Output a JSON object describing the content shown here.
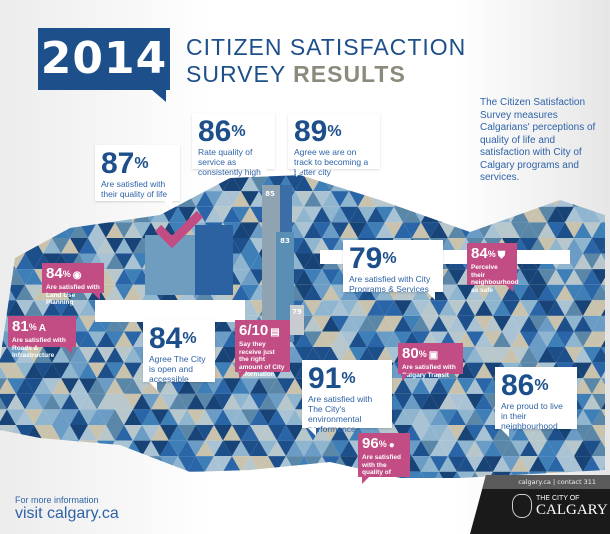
{
  "header": {
    "year": "2014",
    "title_line1": "CITIZEN SATISFACTION",
    "title_line2_a": "SURVEY",
    "title_line2_b": "RESULTS"
  },
  "description": "The Citizen Satisfaction Survey measures Calgarians' perceptions of quality of life and satisfaction with City of Calgary programs and services.",
  "stats": {
    "quality_of_life": {
      "value": "87",
      "unit": "%",
      "label": "Are satisfied with their quality of life"
    },
    "quality_of_service": {
      "value": "86",
      "unit": "%",
      "label": "Rate quality of service as consistently high"
    },
    "better_city": {
      "value": "89",
      "unit": "%",
      "label": "Agree we are on track to becoming a better city"
    },
    "programs": {
      "value": "79",
      "unit": "%",
      "label": "Are satisfied with City Programs & Services"
    },
    "safe": {
      "value": "84",
      "unit": "%",
      "label": "Perceive their neighbourhood as safe",
      "icon": "shield-icon"
    },
    "land_use": {
      "value": "84",
      "unit": "%",
      "label": "Are satisfied with Land Use Planning",
      "icon": "compass-icon"
    },
    "roads": {
      "value": "81",
      "unit": "%",
      "label": "Are satisfied with Roads & Infrastructure",
      "icon": "road-icon"
    },
    "open": {
      "value": "84",
      "unit": "%",
      "label": "Agree The City is open and accessible"
    },
    "information": {
      "value": "6/10",
      "label": "Say they receive just the right amount of City information",
      "icon": "document-icon"
    },
    "transit": {
      "value": "80",
      "unit": "%",
      "label": "Are satisfied with Calgary Transit",
      "icon": "bus-icon"
    },
    "environment": {
      "value": "91",
      "unit": "%",
      "label": "Are satisfied with The City's environmental performance"
    },
    "proud": {
      "value": "86",
      "unit": "%",
      "label": "Are proud to live in their neighbourhood"
    },
    "water": {
      "value": "96",
      "unit": "%",
      "label": "Are satisfied with the quality of drinking water",
      "icon": "water-drop-icon"
    }
  },
  "tower_values": [
    "85",
    "83",
    "79"
  ],
  "footer": {
    "more_info": "For more information",
    "link": "visit calgary.ca",
    "contact": "calgary.ca  |  contact 311",
    "logo_small": "THE CITY OF",
    "logo_name": "CALGARY"
  },
  "colors": {
    "primary_blue": "#1d4f8b",
    "accent_pink": "#c24d84",
    "gray": "#8b8a7c"
  }
}
